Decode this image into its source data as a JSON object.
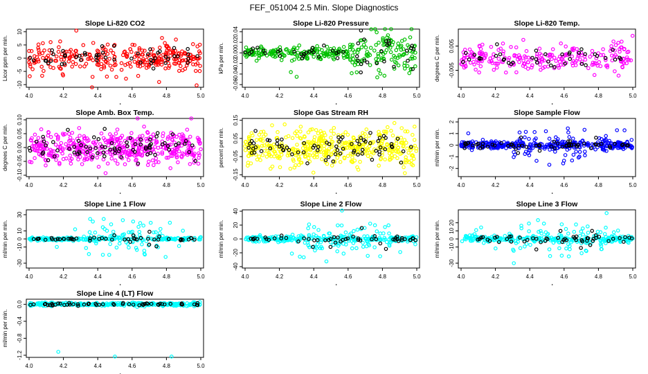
{
  "figure_title": "FEF_051004  2.5 Min. Slope Diagnostics",
  "chart_data": [
    {
      "type": "scatter",
      "title": "Slope Li-820 CO2",
      "ylabel": "Licor ppm per min.",
      "xlim": [
        4.0,
        5.0
      ],
      "ylim": [
        -11,
        11
      ],
      "yticks": [
        "-10",
        "-5",
        "0",
        "5",
        "10"
      ],
      "xticks": [
        "4.0",
        "4.2",
        "4.4",
        "4.6",
        "4.8",
        "5.0"
      ],
      "colors": [
        "#ff0000",
        "#000000"
      ],
      "spread": 2.5,
      "outlier_scale": 6,
      "n": 300,
      "burst": [],
      "tail": []
    },
    {
      "type": "scatter",
      "title": "Slope Li-820 Pressure",
      "ylabel": "kPa per min.",
      "xlim": [
        4.0,
        5.0
      ],
      "ylim": [
        -0.065,
        0.045
      ],
      "yticks": [
        "-0.06",
        "-0.04",
        "-0.02",
        "0.00",
        "0.02",
        "0.04"
      ],
      "xticks": [
        "4.0",
        "4.2",
        "4.4",
        "4.6",
        "4.8",
        "5.0"
      ],
      "colors": [
        "#00c000",
        "#000000"
      ],
      "spread": 0.006,
      "outlier_scale": 0.02,
      "n": 300,
      "burst": [],
      "tail": [
        [
          0.6,
          1.0,
          4
        ]
      ]
    },
    {
      "type": "scatter",
      "title": "Slope Li-820 Temp.",
      "ylabel": "degrees C per min.",
      "xlim": [
        4.0,
        5.0
      ],
      "ylim": [
        -0.012,
        0.012
      ],
      "yticks": [
        "-0.005",
        "0.005"
      ],
      "xticks": [
        "4.0",
        "4.2",
        "4.4",
        "4.6",
        "4.8",
        "5.0"
      ],
      "colors": [
        "#ff00ff",
        "#000000"
      ],
      "spread": 0.0025,
      "outlier_scale": 0.004,
      "n": 240,
      "burst": [
        [
          0.0,
          0.3
        ],
        [
          0.85,
          1.0
        ]
      ],
      "tail": []
    },
    {
      "type": "scatter",
      "title": "Slope Amb. Box Temp.",
      "ylabel": "degrees C per min.",
      "xlim": [
        4.0,
        5.0
      ],
      "ylim": [
        -0.105,
        0.105
      ],
      "yticks": [
        "-0.10",
        "-0.05",
        "0.00",
        "0.05",
        "0.10"
      ],
      "xticks": [
        "4.0",
        "4.2",
        "4.4",
        "4.6",
        "4.8",
        "5.0"
      ],
      "colors": [
        "#ff00ff",
        "#000000"
      ],
      "spread": 0.03,
      "outlier_scale": 0.04,
      "n": 450,
      "burst": [],
      "tail": []
    },
    {
      "type": "scatter",
      "title": "Slope Gas Stream RH",
      "ylabel": "percent per min.",
      "xlim": [
        4.0,
        5.0
      ],
      "ylim": [
        -0.16,
        0.16
      ],
      "yticks": [
        "-0.15",
        "-0.05",
        "0.05",
        "0.15"
      ],
      "xticks": [
        "4.0",
        "4.2",
        "4.4",
        "4.6",
        "4.8",
        "5.0"
      ],
      "colors": [
        "#ffff00",
        "#000000"
      ],
      "spread": 0.05,
      "outlier_scale": 0.05,
      "n": 450,
      "burst": [],
      "tail": []
    },
    {
      "type": "scatter",
      "title": "Slope Sample Flow",
      "ylabel": "ml/min per min.",
      "xlim": [
        4.0,
        5.0
      ],
      "ylim": [
        -2.7,
        2.3
      ],
      "yticks": [
        "-2",
        "-1",
        "0",
        "1",
        "2"
      ],
      "xticks": [
        "4.0",
        "4.2",
        "4.4",
        "4.6",
        "4.8",
        "5.0"
      ],
      "colors": [
        "#0000ff",
        "#000000"
      ],
      "spread": 0.15,
      "outlier_scale": 0.8,
      "n": 380,
      "burst": [
        [
          0.3,
          0.85
        ]
      ],
      "tail": []
    },
    {
      "type": "scatter",
      "title": "Slope Line 1 Flow",
      "ylabel": "ml/min per min.",
      "xlim": [
        4.0,
        5.0
      ],
      "ylim": [
        -36,
        36
      ],
      "yticks": [
        "-30",
        "-10",
        "0",
        "10",
        "30"
      ],
      "xticks": [
        "4.0",
        "4.2",
        "4.4",
        "4.6",
        "4.8",
        "5.0"
      ],
      "colors": [
        "#00ffff",
        "#000000"
      ],
      "spread": 1.0,
      "outlier_scale": 14,
      "n": 300,
      "burst": [
        [
          0.3,
          0.8
        ]
      ],
      "tail": []
    },
    {
      "type": "scatter",
      "title": "Slope Line 2 Flow",
      "ylabel": "ml/min per min.",
      "xlim": [
        4.0,
        5.0
      ],
      "ylim": [
        -42,
        42
      ],
      "yticks": [
        "-40",
        "-20",
        "0",
        "20",
        "40"
      ],
      "xticks": [
        "4.0",
        "4.2",
        "4.4",
        "4.6",
        "4.8",
        "5.0"
      ],
      "colors": [
        "#00ffff",
        "#000000"
      ],
      "spread": 2.0,
      "outlier_scale": 15,
      "n": 320,
      "burst": [
        [
          0.3,
          0.85
        ]
      ],
      "tail": []
    },
    {
      "type": "scatter",
      "title": "Slope Line 3 Flow",
      "ylabel": "ml/min per min.",
      "xlim": [
        4.0,
        5.0
      ],
      "ylim": [
        -36,
        36
      ],
      "yticks": [
        "-30",
        "-10",
        "0",
        "10",
        "20"
      ],
      "xticks": [
        "4.0",
        "4.2",
        "4.4",
        "4.6",
        "4.8",
        "5.0"
      ],
      "colors": [
        "#00ffff",
        "#000000"
      ],
      "spread": 2.0,
      "outlier_scale": 12,
      "n": 320,
      "burst": [
        [
          0.3,
          0.85
        ]
      ],
      "tail": []
    },
    {
      "type": "scatter",
      "title": "Slope Line 4 (LT) Flow",
      "ylabel": "ml/min per min.",
      "xlim": [
        4.0,
        5.0
      ],
      "ylim": [
        -1.25,
        0.12
      ],
      "yticks": [
        "-1.2",
        "-0.8",
        "-0.4",
        "0.0"
      ],
      "xticks": [
        "4.0",
        "4.2",
        "4.4",
        "4.6",
        "4.8",
        "5.0"
      ],
      "colors": [
        "#00ffff",
        "#000000"
      ],
      "spread": 0.02,
      "outlier_scale": 0.0,
      "n": 320,
      "burst": [],
      "tail": [],
      "outliers": [
        [
          4.17,
          -1.12
        ],
        [
          4.5,
          -1.23
        ],
        [
          4.83,
          -1.23
        ]
      ]
    }
  ]
}
